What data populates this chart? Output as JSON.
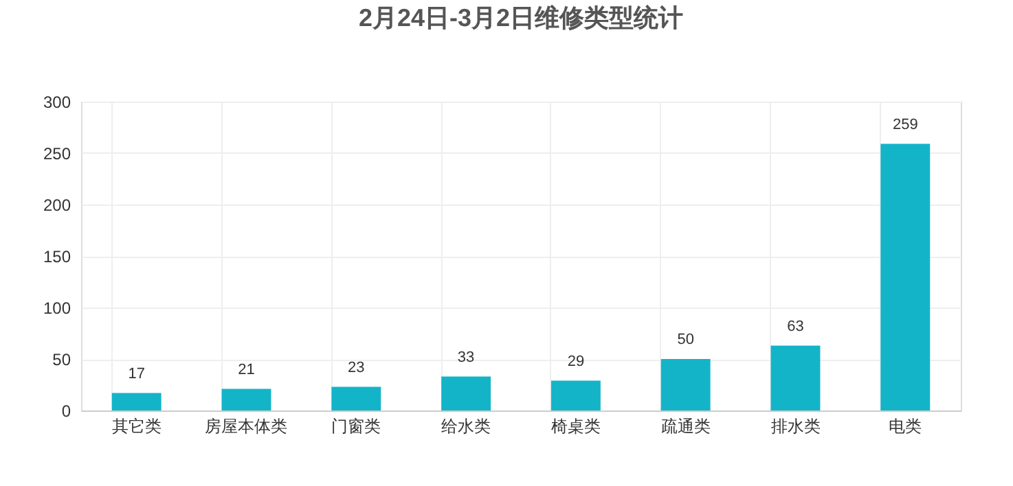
{
  "chart_data": {
    "type": "bar",
    "title": "2月24日-3月2日维修类型统计",
    "categories": [
      "其它类",
      "房屋本体类",
      "门窗类",
      "给水类",
      "椅桌类",
      "疏通类",
      "排水类",
      "电类"
    ],
    "values": [
      17,
      21,
      23,
      33,
      29,
      50,
      63,
      259
    ],
    "color": "#14b4c8",
    "ylim": [
      0,
      300
    ],
    "yticks": [
      0,
      50,
      100,
      150,
      200,
      250,
      300
    ],
    "grid": true,
    "data_labels": true
  }
}
